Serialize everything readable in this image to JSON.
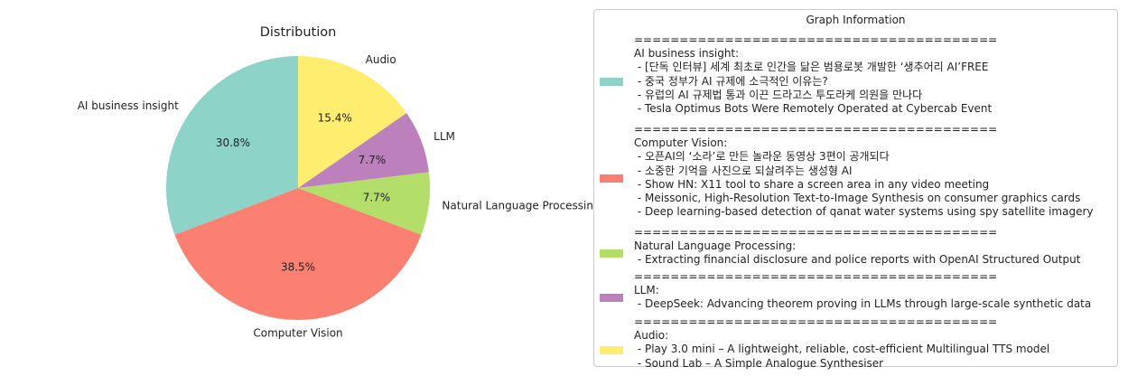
{
  "chart_data": {
    "type": "pie",
    "title": "Distribution",
    "slices": [
      {
        "label": "AI business insight",
        "value": 30.8,
        "pct_label": "30.8%",
        "color": "#8dd3c7"
      },
      {
        "label": "Computer Vision",
        "value": 38.5,
        "pct_label": "38.5%",
        "color": "#fb8072"
      },
      {
        "label": "Natural Language Processing",
        "value": 7.7,
        "pct_label": "7.7%",
        "color": "#b3de69"
      },
      {
        "label": "LLM",
        "value": 7.7,
        "pct_label": "7.7%",
        "color": "#bc80bd"
      },
      {
        "label": "Audio",
        "value": 15.4,
        "pct_label": "15.4%",
        "color": "#ffed6f"
      }
    ],
    "start_angle_deg": 90,
    "direction": "counterclockwise",
    "legend": {
      "title": "Graph Information",
      "placement": "right",
      "separator": "========================================",
      "entries": [
        {
          "color": "#8dd3c7",
          "lines": [
            "AI business insight:",
            " - [단독 인터뷰] 세계 최초로 인간을 닮은 범용로봇 개발한 ‘생추어리 AI’FREE",
            " - 중국 정부가 AI 규제에 소극적인 이유는?",
            " - 유럽의 AI 규제법 통과 이끈 드라고스 투도라케 의원을 만나다",
            " - Tesla Optimus Bots Were Remotely Operated at Cybercab Event"
          ]
        },
        {
          "color": "#fb8072",
          "lines": [
            "Computer Vision:",
            " - 오픈AI의 ‘소라’로 만든 놀라운 동영상 3편이 공개되다",
            " - 소중한 기억을 사진으로 되살려주는 생성형 AI",
            " - Show HN: X11 tool to share a screen area in any video meeting",
            " - Meissonic, High-Resolution Text-to-Image Synthesis on consumer graphics cards",
            " - Deep learning-based detection of qanat water systems using spy satellite imagery"
          ]
        },
        {
          "color": "#b3de69",
          "lines": [
            "Natural Language Processing:",
            " - Extracting financial disclosure and police reports with OpenAI Structured Output"
          ]
        },
        {
          "color": "#bc80bd",
          "lines": [
            "LLM:",
            " - DeepSeek: Advancing theorem proving in LLMs through large-scale synthetic data"
          ]
        },
        {
          "color": "#ffed6f",
          "lines": [
            "Audio:",
            " - Play 3.0 mini – A lightweight, reliable, cost-efficient Multilingual TTS model",
            " - Sound Lab – A Simple Analogue Synthesiser"
          ]
        }
      ]
    }
  }
}
